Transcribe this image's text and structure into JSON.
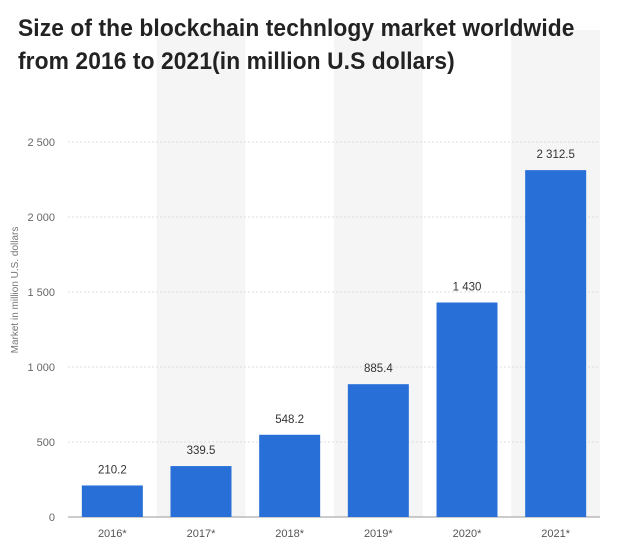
{
  "title_lines": [
    "Size of the blockchain technlogy market worldwide",
    "from 2016 to 2021(in million U.S dollars)"
  ],
  "colors": {
    "bar": "#2870d8",
    "stripe": "#f5f5f5",
    "grid": "#dddddd",
    "baseline": "#999999"
  },
  "chart_data": {
    "type": "bar",
    "title": "Size of the blockchain technlogy market worldwide from 2016 to 2021(in million U.S dollars)",
    "xlabel": "",
    "ylabel": "Market in million U.S. dollars",
    "categories": [
      "2016*",
      "2017*",
      "2018*",
      "2019*",
      "2020*",
      "2021*"
    ],
    "values": [
      210.2,
      339.5,
      548.2,
      885.4,
      1430,
      2312.5
    ],
    "value_labels": [
      "210.2",
      "339.5",
      "548.2",
      "885.4",
      "1 430",
      "2 312.5"
    ],
    "ylim": [
      0,
      2500
    ],
    "yticks": [
      0,
      500,
      1000,
      1500,
      2000,
      2500
    ],
    "ytick_labels": [
      "0",
      "500",
      "1 000",
      "1 500",
      "2 000",
      "2 500"
    ],
    "grid": true,
    "legend": "none"
  }
}
